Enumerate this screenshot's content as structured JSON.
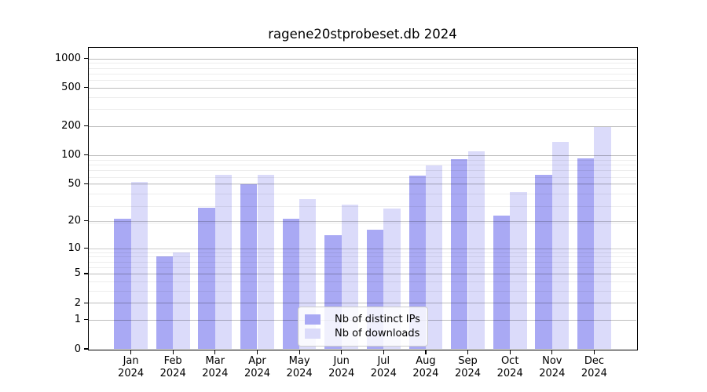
{
  "figure": {
    "title": "ragene20stprobeset.db 2024"
  },
  "chart_data": {
    "type": "bar",
    "title": "ragene20stprobeset.db 2024",
    "categories": [
      "Jan",
      "Feb",
      "Mar",
      "Apr",
      "May",
      "Jun",
      "Jul",
      "Aug",
      "Sep",
      "Oct",
      "Nov",
      "Dec"
    ],
    "category_year": "2024",
    "series": [
      {
        "name": "Nb of distinct IPs",
        "color": "#a9a9f4",
        "values": [
          21,
          8,
          28,
          49,
          21,
          14,
          16,
          61,
          90,
          23,
          62,
          92
        ]
      },
      {
        "name": "Nb of downloads",
        "color": "#dbdbfa",
        "values": [
          52,
          9,
          62,
          62,
          34,
          30,
          27,
          78,
          110,
          41,
          137,
          196
        ]
      }
    ],
    "xlabel": "",
    "ylabel": "",
    "yscale": "log1p",
    "yticks": [
      0,
      1,
      2,
      5,
      10,
      20,
      50,
      100,
      200,
      500,
      1000
    ],
    "ylim": [
      0,
      1290
    ],
    "grid": "major+minor",
    "legend_position": "lower center",
    "colors": {
      "background": "#ffffff",
      "spine": "#000000",
      "major_grid": "#cccccc",
      "minor_grid": "#ededed"
    }
  }
}
